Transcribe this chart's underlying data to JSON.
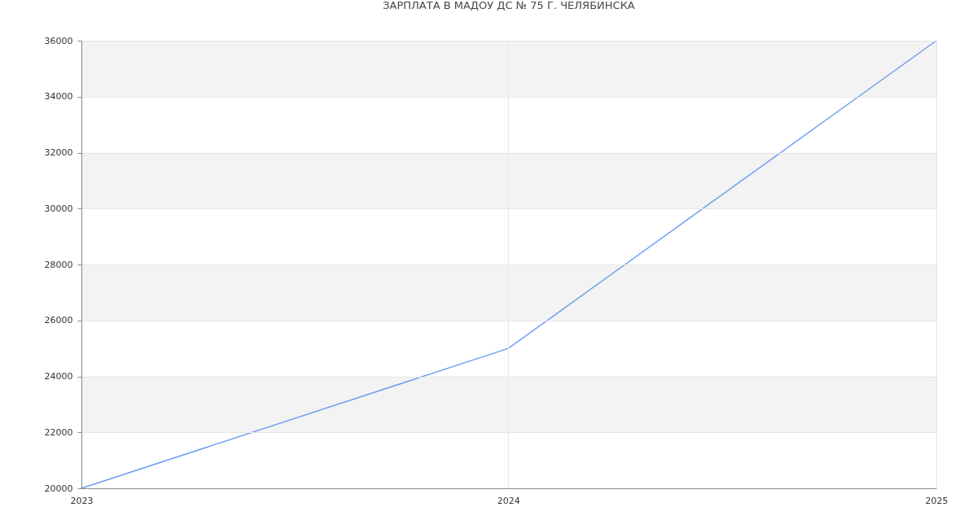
{
  "chart_data": {
    "type": "line",
    "title": "ЗАРПЛАТА В МАДОУ ДС № 75 Г. ЧЕЛЯБИНСКА",
    "x": [
      "2023",
      "2024",
      "2025"
    ],
    "series": [
      {
        "color": "#6e9ef0",
        "values": [
          20000,
          25000,
          36000
        ]
      }
    ],
    "xlim": [
      "2023",
      "2025"
    ],
    "xticks": [
      "2023",
      "2024",
      "2025"
    ],
    "ylim": [
      20000,
      36000
    ],
    "yticks": [
      20000,
      22000,
      24000,
      26000,
      28000,
      30000,
      32000,
      34000,
      36000
    ],
    "bands": [
      {
        "axis": "y",
        "from": 22000,
        "to": 24000,
        "color": "#f3f3f3"
      },
      {
        "axis": "y",
        "from": 26000,
        "to": 28000,
        "color": "#f3f3f3"
      },
      {
        "axis": "y",
        "from": 30000,
        "to": 32000,
        "color": "#f3f3f3"
      },
      {
        "axis": "y",
        "from": 34000,
        "to": 36000,
        "color": "#f3f3f3"
      }
    ],
    "grid": true
  }
}
